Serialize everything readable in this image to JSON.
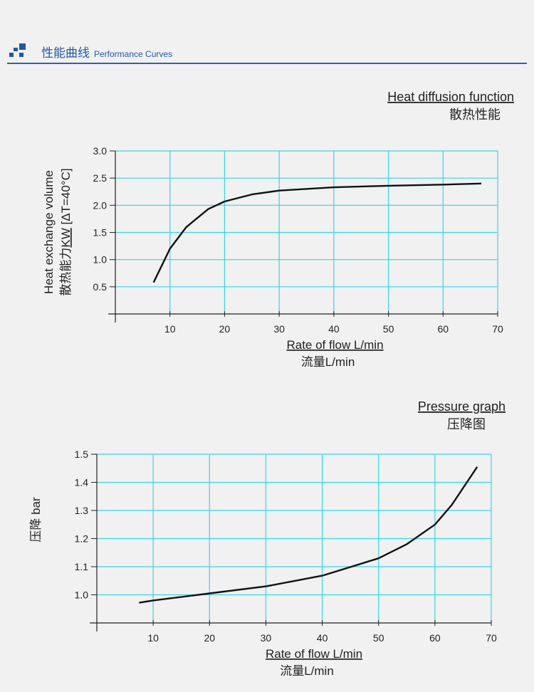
{
  "header": {
    "title_cn": "性能曲线",
    "title_en": "Performance Curves"
  },
  "chart_data": [
    {
      "type": "line",
      "title": "Heat diffusion function",
      "subtitle": "散热性能",
      "ylabel_en": "Heat exchange volume",
      "ylabel_cn": "散热能力",
      "ylabel_unit": "KW",
      "ylabel_cond": "[ΔT=40°C]",
      "xlabel": "Rate of flow L/min",
      "xlabel_cn": "流量L/min",
      "xlim": [
        0,
        70
      ],
      "ylim": [
        0,
        3.0
      ],
      "xticks": [
        "10",
        "20",
        "30",
        "40",
        "50",
        "60",
        "70"
      ],
      "yticks": [
        "0.5",
        "1.0",
        "1.5",
        "2.0",
        "2.5",
        "3.0"
      ],
      "x": [
        7,
        10,
        13,
        17,
        20,
        25,
        30,
        40,
        50,
        60,
        67
      ],
      "y": [
        0.58,
        1.2,
        1.6,
        1.93,
        2.07,
        2.2,
        2.27,
        2.33,
        2.36,
        2.38,
        2.4
      ],
      "grid": true,
      "grid_color": "#33d6e6"
    },
    {
      "type": "line",
      "title": "Pressure graph",
      "subtitle": "压降图",
      "ylabel": "压降 bar",
      "xlabel": "Rate of flow L/min",
      "xlabel_cn": "流量L/min",
      "xlim": [
        0,
        70
      ],
      "ylim": [
        0.9,
        1.5
      ],
      "xticks": [
        "10",
        "20",
        "30",
        "40",
        "50",
        "60",
        "70"
      ],
      "yticks": [
        "1.0",
        "1.1",
        "1.2",
        "1.3",
        "1.4",
        "1.5"
      ],
      "x": [
        7.5,
        10,
        20,
        30,
        40,
        50,
        55,
        60,
        63,
        67.5
      ],
      "y": [
        0.972,
        0.98,
        1.005,
        1.03,
        1.068,
        1.13,
        1.18,
        1.25,
        1.32,
        1.455
      ],
      "grid": true,
      "grid_color": "#33d6e6"
    }
  ]
}
